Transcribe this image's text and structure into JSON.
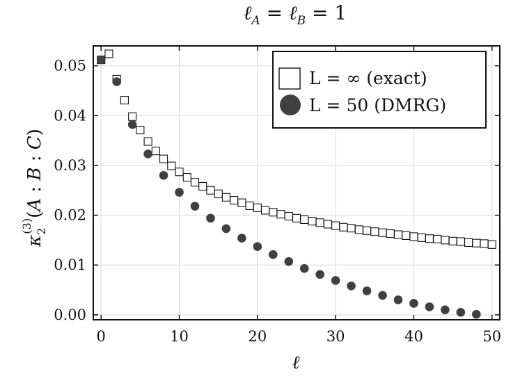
{
  "chart_data": {
    "type": "scatter",
    "title": "ℓ_A = ℓ_B = 1",
    "xlabel": "ℓ",
    "ylabel": "κ₂⁽³⁾(A : B : C)",
    "xlim": [
      -1,
      51
    ],
    "ylim": [
      -0.001,
      0.054
    ],
    "xticks": [
      0,
      10,
      20,
      30,
      40,
      50
    ],
    "xtick_labels": [
      "0",
      "10",
      "20",
      "30",
      "40",
      "50"
    ],
    "yticks": [
      0.0,
      0.01,
      0.02,
      0.03,
      0.04,
      0.05
    ],
    "ytick_labels": [
      "0.00",
      "0.01",
      "0.02",
      "0.03",
      "0.04",
      "0.05"
    ],
    "grid": true,
    "legend_position": "top-right",
    "series": [
      {
        "name": "L = ∞ (exact)",
        "marker": "open-square",
        "color": "#111111",
        "x": [
          0,
          1,
          2,
          3,
          4,
          5,
          6,
          7,
          8,
          9,
          10,
          11,
          12,
          13,
          14,
          15,
          16,
          17,
          18,
          19,
          20,
          21,
          22,
          23,
          24,
          25,
          26,
          27,
          28,
          29,
          30,
          31,
          32,
          33,
          34,
          35,
          36,
          37,
          38,
          39,
          40,
          41,
          42,
          43,
          44,
          45,
          46,
          47,
          48,
          49,
          50
        ],
        "y": [
          0.0512,
          0.0524,
          0.0473,
          0.0431,
          0.0398,
          0.0371,
          0.0348,
          0.0329,
          0.0313,
          0.0299,
          0.0287,
          0.0276,
          0.0266,
          0.0258,
          0.025,
          0.0243,
          0.0236,
          0.023,
          0.0225,
          0.0219,
          0.0215,
          0.021,
          0.0206,
          0.0202,
          0.0198,
          0.0194,
          0.0191,
          0.0188,
          0.0185,
          0.0182,
          0.0179,
          0.0176,
          0.0174,
          0.0171,
          0.0169,
          0.0167,
          0.0165,
          0.0163,
          0.0161,
          0.0159,
          0.0157,
          0.0155,
          0.0153,
          0.0152,
          0.015,
          0.0148,
          0.0147,
          0.0145,
          0.0144,
          0.0143,
          0.0141
        ]
      },
      {
        "name": "L = 50 (DMRG)",
        "marker": "filled-circle",
        "color": "#404040",
        "x": [
          0,
          2,
          4,
          6,
          8,
          10,
          12,
          14,
          16,
          18,
          20,
          22,
          24,
          26,
          28,
          30,
          32,
          34,
          36,
          38,
          40,
          42,
          44,
          46,
          48
        ],
        "y": [
          0.0512,
          0.0468,
          0.0382,
          0.0323,
          0.028,
          0.0246,
          0.0218,
          0.0194,
          0.0173,
          0.0154,
          0.0137,
          0.0121,
          0.0107,
          0.0093,
          0.0081,
          0.0069,
          0.0058,
          0.0048,
          0.0039,
          0.003,
          0.0023,
          0.0016,
          0.001,
          0.0005,
          0.0001
        ]
      }
    ]
  }
}
